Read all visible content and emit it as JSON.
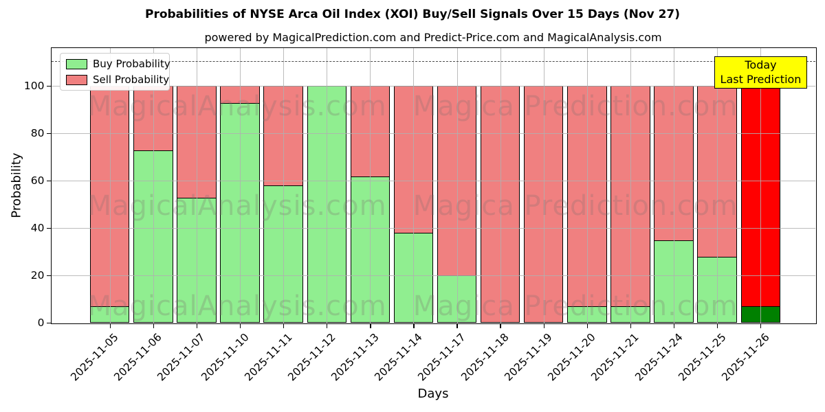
{
  "header": {
    "title": "Probabilities of NYSE Arca Oil Index (XOI) Buy/Sell Signals Over 15 Days (Nov 27)",
    "subtitle": "powered by MagicalPrediction.com and Predict-Price.com and MagicalAnalysis.com"
  },
  "chart_data": {
    "type": "bar",
    "stacked": true,
    "title": "Probabilities of NYSE Arca Oil Index (XOI) Buy/Sell Signals Over 15 Days (Nov 27)",
    "xlabel": "Days",
    "ylabel": "Probability",
    "categories": [
      "2025-11-05",
      "2025-11-06",
      "2025-11-07",
      "2025-11-10",
      "2025-11-11",
      "2025-11-12",
      "2025-11-13",
      "2025-11-14",
      "2025-11-17",
      "2025-11-18",
      "2025-11-19",
      "2025-11-20",
      "2025-11-21",
      "2025-11-24",
      "2025-11-25",
      "2025-11-26"
    ],
    "series": [
      {
        "name": "Buy Probability",
        "color": "#90EE90",
        "values": [
          7,
          73,
          53,
          93,
          58,
          100,
          62,
          38,
          20,
          0,
          0,
          7,
          7,
          35,
          28,
          7
        ]
      },
      {
        "name": "Sell Probability",
        "color": "#F08080",
        "values": [
          93,
          27,
          47,
          7,
          42,
          0,
          38,
          62,
          80,
          100,
          100,
          93,
          93,
          65,
          72,
          93
        ]
      }
    ],
    "today_bar": {
      "index": 15,
      "buy_color": "#008000",
      "sell_color": "#FF0000"
    },
    "yticks": [
      0,
      20,
      40,
      60,
      80,
      100
    ],
    "ylim": [
      0,
      116
    ],
    "dashed_line_value": 110.6,
    "grid": true,
    "legend_position": "upper-left"
  },
  "annotation": {
    "line1": "Today",
    "line2": "Last Prediction",
    "bg_color": "#ffff00"
  },
  "watermarks": {
    "color": "rgba(125,110,110,0.26)",
    "texts": [
      {
        "text": "MagicalAnalysis.com",
        "x_center": 270
      },
      {
        "text": "Magica Prediction.com",
        "x_center": 762
      }
    ],
    "row_y_centers": [
      85,
      230,
      376
    ]
  }
}
